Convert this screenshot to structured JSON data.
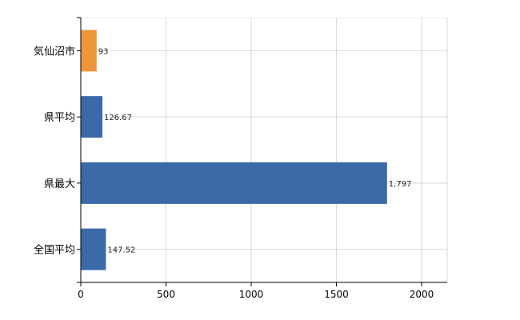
{
  "chart_data": {
    "type": "bar",
    "orientation": "horizontal",
    "categories": [
      "気仙沼市",
      "県平均",
      "県最大",
      "全国平均"
    ],
    "values": [
      93,
      126.67,
      1797,
      147.52
    ],
    "value_labels": [
      "93",
      "126.67",
      "1,797",
      "147.52"
    ],
    "bar_colors": [
      "#f0963a",
      "#3a6aa8",
      "#3a6aa8",
      "#3a6aa8"
    ],
    "xlim": [
      0,
      2150
    ],
    "xticks": [
      0,
      500,
      1000,
      1500,
      2000
    ],
    "grid": true,
    "title": "",
    "xlabel": "",
    "ylabel": ""
  }
}
